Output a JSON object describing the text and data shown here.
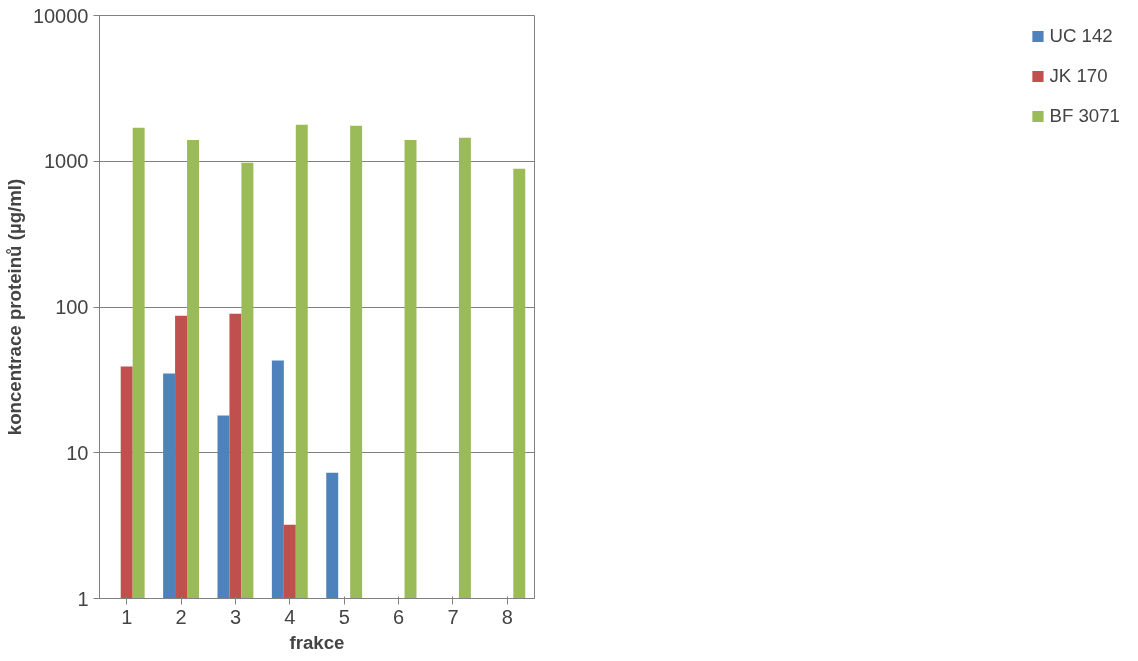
{
  "chart_data": {
    "type": "bar",
    "xlabel": "frakce",
    "ylabel": "koncentrace proteinů (µg/ml)",
    "categories": [
      "1",
      "2",
      "3",
      "4",
      "5",
      "6",
      "7",
      "8"
    ],
    "series": [
      {
        "name": "UC 142",
        "color": "#4f81bd",
        "values": [
          null,
          35,
          18,
          43,
          7.3,
          null,
          null,
          null
        ]
      },
      {
        "name": "JK 170",
        "color": "#c0504d",
        "values": [
          39,
          87,
          90,
          3.2,
          null,
          null,
          null,
          null
        ]
      },
      {
        "name": "BF 3071",
        "color": "#9bbb59",
        "values": [
          1700,
          1400,
          975,
          1780,
          1750,
          1400,
          1450,
          890
        ]
      }
    ],
    "log": true,
    "ylim": [
      1,
      10000
    ],
    "yticks": [
      1,
      10,
      100,
      1000,
      10000
    ],
    "grid": "y",
    "legend": "right"
  }
}
